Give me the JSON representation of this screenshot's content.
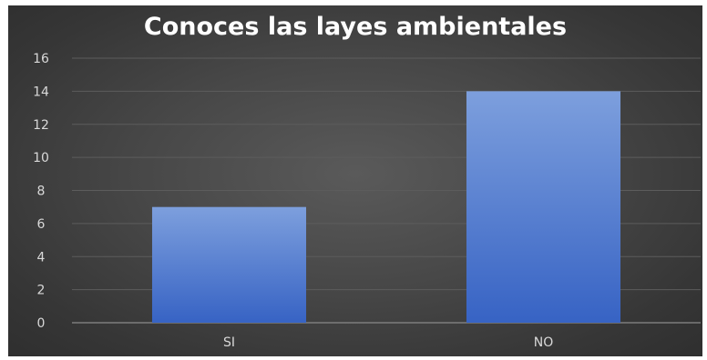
{
  "chart_data": {
    "type": "bar",
    "title": "Conoces las layes ambientales",
    "categories": [
      "SI",
      "NO"
    ],
    "values": [
      7,
      14
    ],
    "ylim": [
      0,
      16
    ],
    "yticks": [
      0,
      2,
      4,
      6,
      8,
      10,
      12,
      14,
      16
    ],
    "grid": true,
    "legend": "none",
    "colors": {
      "bar_top": "#7d9fdd",
      "bar_bottom": "#3763c4",
      "background": "#454545",
      "grid": "#5c5c5c",
      "text": "#d9d9d9",
      "title": "#ffffff"
    }
  }
}
